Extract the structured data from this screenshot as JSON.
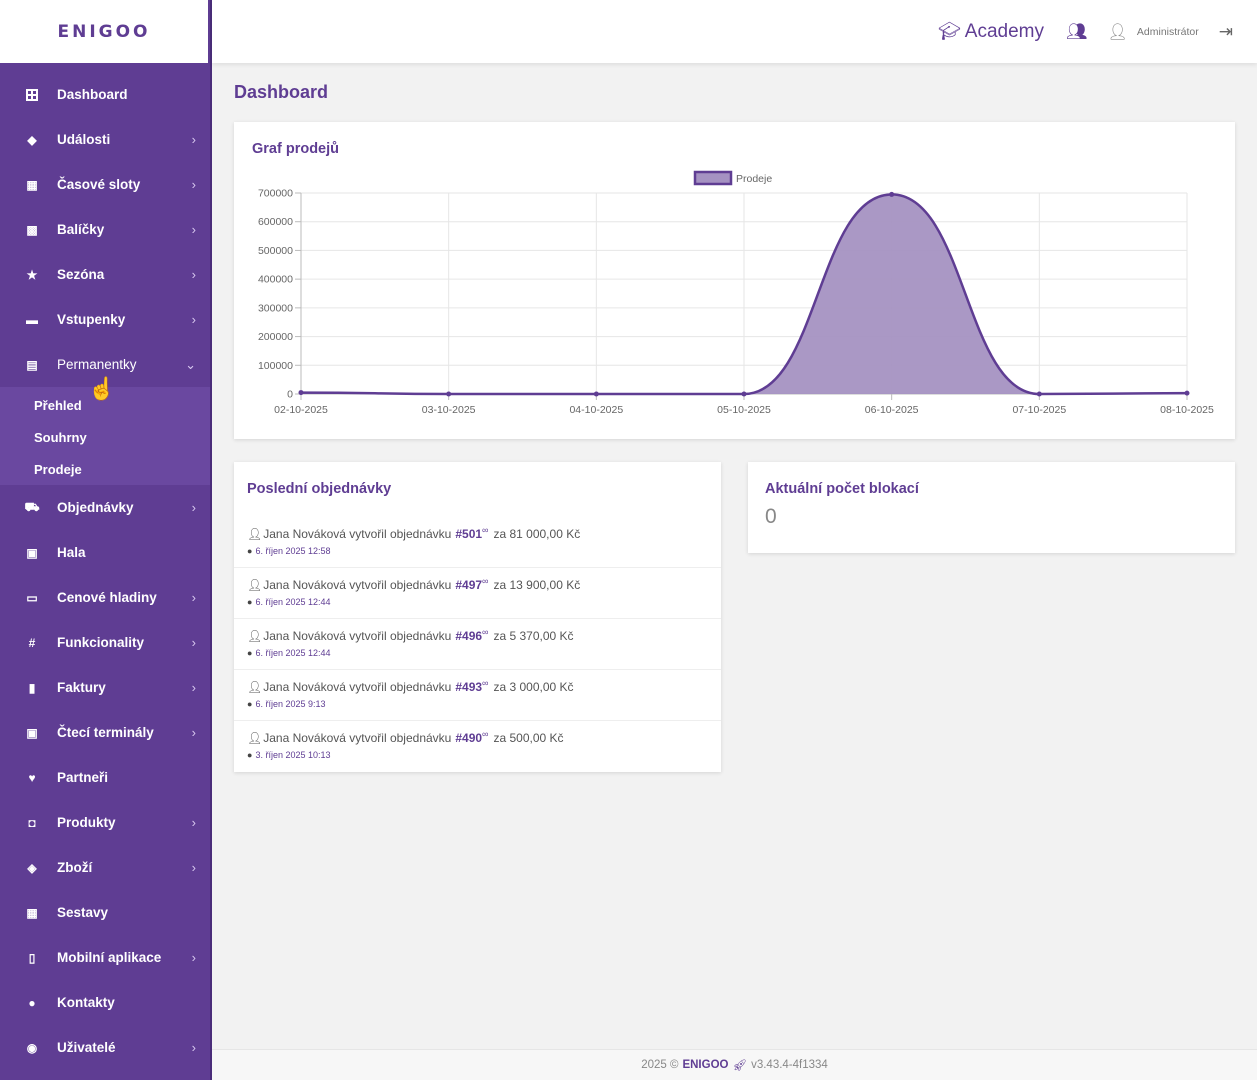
{
  "app": {
    "logo": "ENIGOO"
  },
  "sidebar": {
    "items": [
      {
        "label": "Dashboard",
        "icon": "dashboard-grid-icon",
        "glyph": "⊞",
        "chevron": ""
      },
      {
        "label": "Události",
        "icon": "gem-icon",
        "glyph": "◆",
        "chevron": "›"
      },
      {
        "label": "Časové sloty",
        "icon": "calendar-icon",
        "glyph": "▦",
        "chevron": "›"
      },
      {
        "label": "Balíčky",
        "icon": "package-icon",
        "glyph": "▩",
        "chevron": "›"
      },
      {
        "label": "Sezóna",
        "icon": "star-icon",
        "glyph": "★",
        "chevron": "›"
      },
      {
        "label": "Vstupenky",
        "icon": "ticket-icon",
        "glyph": "▬",
        "chevron": "›"
      },
      {
        "label": "Permanentky",
        "icon": "id-card-icon",
        "glyph": "▤",
        "chevron": "⌄"
      }
    ],
    "submenu": [
      "Přehled",
      "Souhrny",
      "Prodeje"
    ],
    "items_after": [
      {
        "label": "Objednávky",
        "icon": "cart-icon",
        "glyph": "⛟",
        "chevron": "›"
      },
      {
        "label": "Hala",
        "icon": "hall-icon",
        "glyph": "▣",
        "chevron": ""
      },
      {
        "label": "Cenové hladiny",
        "icon": "money-icon",
        "glyph": "▭",
        "chevron": "›"
      },
      {
        "label": "Funkcionality",
        "icon": "hashtag-icon",
        "glyph": "#",
        "chevron": "›"
      },
      {
        "label": "Faktury",
        "icon": "file-icon",
        "glyph": "▮",
        "chevron": "›"
      },
      {
        "label": "Čtecí terminály",
        "icon": "terminal-icon",
        "glyph": "▣",
        "chevron": "›"
      },
      {
        "label": "Partneři",
        "icon": "heart-icon",
        "glyph": "♥",
        "chevron": ""
      },
      {
        "label": "Produkty",
        "icon": "bag-icon",
        "glyph": "◘",
        "chevron": "›"
      },
      {
        "label": "Zboží",
        "icon": "tag-icon",
        "glyph": "◈",
        "chevron": "›"
      },
      {
        "label": "Sestavy",
        "icon": "calculator-icon",
        "glyph": "▦",
        "chevron": ""
      },
      {
        "label": "Mobilní aplikace",
        "icon": "mobile-icon",
        "glyph": "▯",
        "chevron": "›"
      },
      {
        "label": "Kontakty",
        "icon": "contact-icon",
        "glyph": "●",
        "chevron": ""
      },
      {
        "label": "Uživatelé",
        "icon": "users-cog-icon",
        "glyph": "◉",
        "chevron": "›"
      }
    ]
  },
  "header": {
    "academy_label": "Academy",
    "user_label": "Administrátor"
  },
  "main": {
    "title": "Dashboard",
    "chart_title": "Graf prodejů",
    "orders_title": "Poslední objednávky",
    "blocks_title": "Aktuální počet blokací",
    "blocks_value": "0"
  },
  "orders": [
    {
      "text": "Jana Nováková vytvořil objednávku",
      "number": "#501",
      "amount": "za 81 000,00 Kč",
      "time": "6. říjen 2025 12:58"
    },
    {
      "text": "Jana Nováková vytvořil objednávku",
      "number": "#497",
      "amount": "za 13 900,00 Kč",
      "time": "6. říjen 2025 12:44"
    },
    {
      "text": "Jana Nováková vytvořil objednávku",
      "number": "#496",
      "amount": "za 5 370,00 Kč",
      "time": "6. říjen 2025 12:44"
    },
    {
      "text": "Jana Nováková vytvořil objednávku",
      "number": "#493",
      "amount": "za 3 000,00 Kč",
      "time": "6. říjen 2025 9:13"
    },
    {
      "text": "Jana Nováková vytvořil objednávku",
      "number": "#490",
      "amount": "za 500,00 Kč",
      "time": "3. říjen 2025 10:13"
    }
  ],
  "footer": {
    "prefix": "2025 ©",
    "brand": "ENIGOO",
    "version": "v3.43.4-4f1334"
  },
  "colors": {
    "accent": "#5f3d93",
    "fill": "#a592c2"
  },
  "chart_data": {
    "type": "area",
    "categories": [
      "02-10-2025",
      "03-10-2025",
      "04-10-2025",
      "05-10-2025",
      "06-10-2025",
      "07-10-2025",
      "08-10-2025"
    ],
    "series": [
      {
        "name": "Prodeje",
        "values": [
          5000,
          0,
          0,
          0,
          695000,
          0,
          3000
        ]
      }
    ],
    "yticks": [
      "0",
      "100000",
      "200000",
      "300000",
      "400000",
      "500000",
      "600000",
      "700000"
    ],
    "ylim": [
      0,
      700000
    ],
    "grid": true,
    "legend": "top-center"
  }
}
